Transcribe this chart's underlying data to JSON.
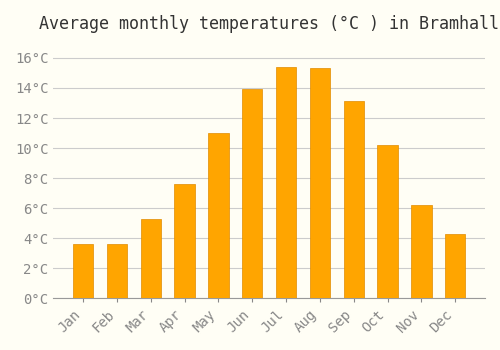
{
  "title": "Average monthly temperatures (°C ) in Bramhall",
  "months": [
    "Jan",
    "Feb",
    "Mar",
    "Apr",
    "May",
    "Jun",
    "Jul",
    "Aug",
    "Sep",
    "Oct",
    "Nov",
    "Dec"
  ],
  "temperatures": [
    3.6,
    3.6,
    5.3,
    7.6,
    11.0,
    13.9,
    15.4,
    15.3,
    13.1,
    10.2,
    6.2,
    4.3
  ],
  "bar_color": "#FFA500",
  "bar_edge_color": "#E08C00",
  "background_color": "#FFFEF5",
  "grid_color": "#CCCCCC",
  "ylim": [
    0,
    17
  ],
  "yticks": [
    0,
    2,
    4,
    6,
    8,
    10,
    12,
    14,
    16
  ],
  "ylabel_suffix": "°C",
  "title_fontsize": 12,
  "tick_fontsize": 10,
  "font_family": "monospace"
}
